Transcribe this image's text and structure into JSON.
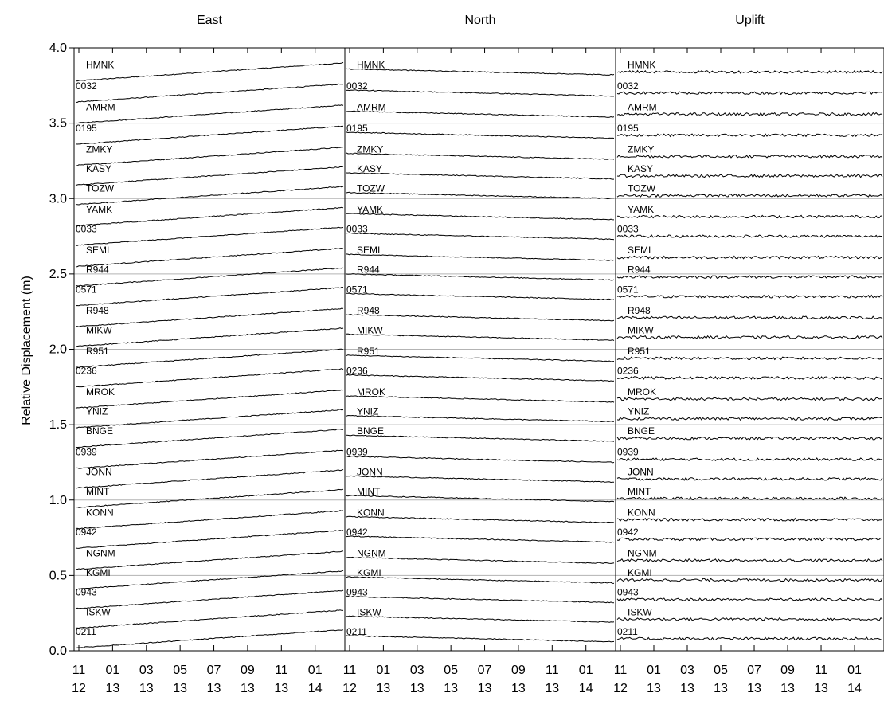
{
  "chart_data": {
    "type": "line",
    "ylabel": "Relative Displacement (m)",
    "ylim": [
      0.0,
      4.0
    ],
    "y_ticks": [
      "0.0",
      "0.5",
      "1.0",
      "1.5",
      "2.0",
      "2.5",
      "3.0",
      "3.5",
      "4.0"
    ],
    "x_ticks_month": [
      "11",
      "01",
      "03",
      "05",
      "07",
      "09",
      "11",
      "01"
    ],
    "x_ticks_year": [
      "12",
      "13",
      "13",
      "13",
      "13",
      "13",
      "13",
      "14"
    ],
    "grid": "horizontal lines at 0.5 m intervals",
    "panels": [
      {
        "title": "East"
      },
      {
        "title": "North"
      },
      {
        "title": "Uplift"
      }
    ],
    "stations": [
      {
        "name": "HMNK",
        "offset": 3.84
      },
      {
        "name": "0032",
        "offset": 3.7
      },
      {
        "name": "AMRM",
        "offset": 3.56
      },
      {
        "name": "0195",
        "offset": 3.42
      },
      {
        "name": "ZMKY",
        "offset": 3.28
      },
      {
        "name": "KASY",
        "offset": 3.15
      },
      {
        "name": "TOZW",
        "offset": 3.02
      },
      {
        "name": "YAMK",
        "offset": 2.88
      },
      {
        "name": "0033",
        "offset": 2.75
      },
      {
        "name": "SEMI",
        "offset": 2.61
      },
      {
        "name": "R944",
        "offset": 2.48
      },
      {
        "name": "0571",
        "offset": 2.35
      },
      {
        "name": "R948",
        "offset": 2.21
      },
      {
        "name": "MIKW",
        "offset": 2.08
      },
      {
        "name": "R951",
        "offset": 1.94
      },
      {
        "name": "0236",
        "offset": 1.81
      },
      {
        "name": "MROK",
        "offset": 1.67
      },
      {
        "name": "YNIZ",
        "offset": 1.54
      },
      {
        "name": "BNGE",
        "offset": 1.41
      },
      {
        "name": "0939",
        "offset": 1.27
      },
      {
        "name": "JONN",
        "offset": 1.14
      },
      {
        "name": "MINT",
        "offset": 1.01
      },
      {
        "name": "KONN",
        "offset": 0.87
      },
      {
        "name": "0942",
        "offset": 0.74
      },
      {
        "name": "NGNM",
        "offset": 0.6
      },
      {
        "name": "KGMI",
        "offset": 0.47
      },
      {
        "name": "0943",
        "offset": 0.34
      },
      {
        "name": "ISKW",
        "offset": 0.21
      },
      {
        "name": "0211",
        "offset": 0.08
      }
    ],
    "trend_m_over_span": {
      "East": 0.12,
      "North": -0.04,
      "Uplift": 0.0
    },
    "noise_m": {
      "East": 0.003,
      "North": 0.003,
      "Uplift": 0.009
    }
  }
}
